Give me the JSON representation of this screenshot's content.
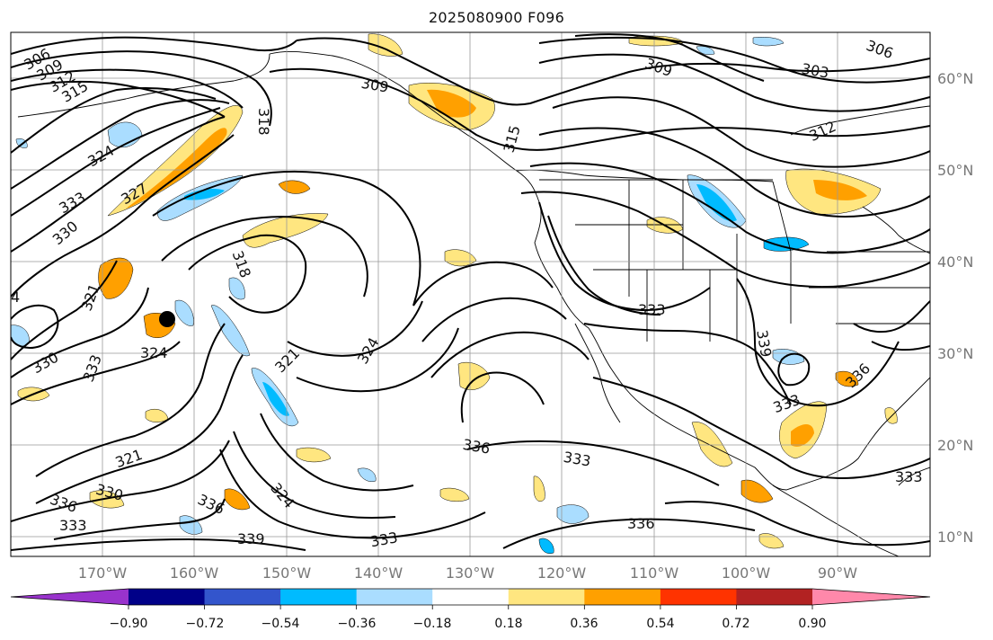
{
  "title": "2025080900 F096",
  "lat_labels": [
    "60°N",
    "50°N",
    "40°N",
    "30°N",
    "20°N",
    "10°N"
  ],
  "lon_labels": [
    "170°W",
    "160°W",
    "150°W",
    "140°W",
    "130°W",
    "120°W",
    "110°W",
    "100°W",
    "90°W"
  ],
  "contour_labels": [
    "306",
    "309",
    "312",
    "315",
    "324",
    "327",
    "333",
    "330",
    "4",
    "321",
    "324",
    "330",
    "333",
    "321",
    "336",
    "330",
    "333",
    "336",
    "324",
    "339",
    "333",
    "318",
    "318",
    "309",
    "315",
    "321",
    "324",
    "336",
    "333",
    "333",
    "339",
    "336",
    "333",
    "336",
    "309",
    "303",
    "306",
    "312",
    "333"
  ],
  "colorbar": {
    "tick_labels": [
      "−0.90",
      "−0.72",
      "−0.54",
      "−0.36",
      "−0.18",
      "0.18",
      "0.36",
      "0.54",
      "0.72",
      "0.90"
    ],
    "colors": [
      "#9933cc",
      "#000088",
      "#3355cc",
      "#00bbff",
      "#aaddff",
      "#ffffff",
      "#ffe680",
      "#ffa000",
      "#ff3300",
      "#b22222",
      "#ff88aa"
    ]
  },
  "marker": "black-dot"
}
